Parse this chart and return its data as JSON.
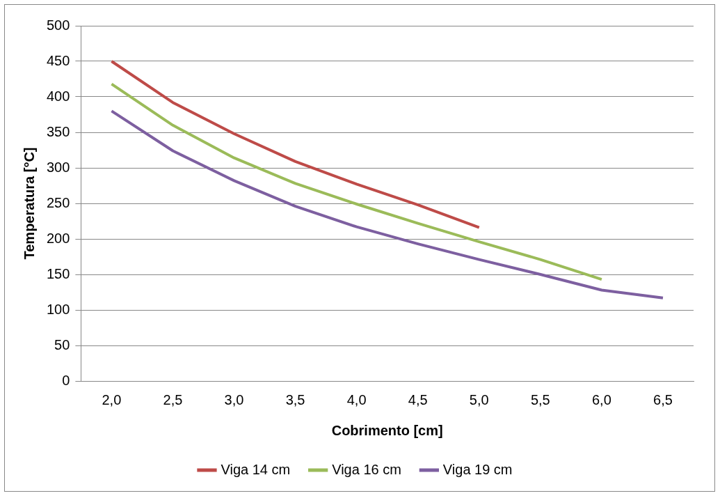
{
  "chart_data": {
    "type": "line",
    "xlabel": "Cobrimento [cm]",
    "ylabel": "Temperatura [°C]",
    "categories": [
      "2,0",
      "2,5",
      "3,0",
      "3,5",
      "4,0",
      "4,5",
      "5,0",
      "5,5",
      "6,0",
      "6,5"
    ],
    "series": [
      {
        "name": "Viga 14 cm",
        "color": "#be4b48",
        "values": [
          450,
          392,
          348,
          309,
          277,
          248,
          216,
          null,
          null,
          null
        ]
      },
      {
        "name": "Viga 16 cm",
        "color": "#9bbb59",
        "values": [
          418,
          360,
          314,
          278,
          249,
          222,
          196,
          171,
          143,
          null
        ]
      },
      {
        "name": "Viga 19 cm",
        "color": "#7d5fa0",
        "values": [
          380,
          324,
          282,
          246,
          217,
          193,
          171,
          150,
          128,
          117
        ]
      }
    ],
    "ylim": [
      0,
      500
    ],
    "yticks": [
      0,
      50,
      100,
      150,
      200,
      250,
      300,
      350,
      400,
      450,
      500
    ],
    "grid": "y",
    "legend": "bottom",
    "marker": "none",
    "line_style": "solid"
  }
}
